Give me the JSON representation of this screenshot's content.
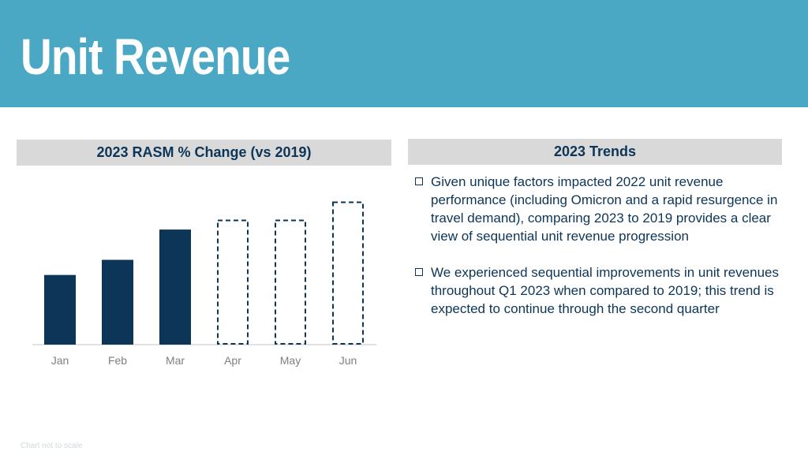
{
  "header": {
    "title": "Unit Revenue"
  },
  "chart_panel": {
    "title": "2023 RASM % Change (vs 2019)"
  },
  "trends_panel": {
    "title": "2023 Trends",
    "bullets": [
      "Given unique factors impacted 2022 unit revenue performance (including Omicron and a rapid resurgence in travel demand), comparing 2023 to 2019 provides a clear view of sequential unit revenue progression",
      "We experienced sequential improvements in unit revenues throughout Q1 2023 when compared to 2019; this trend is expected to continue through the second quarter"
    ]
  },
  "footnote": "Chart not to scale",
  "colors": {
    "header": "#4aa8c4",
    "navy": "#0c3557",
    "panel_head": "#d9d9d9",
    "axis_text": "#7f7f7f"
  },
  "chart_data": {
    "type": "bar",
    "title": "2023 RASM % Change (vs 2019)",
    "categories": [
      "Jan",
      "Feb",
      "Mar",
      "Apr",
      "May",
      "Jun"
    ],
    "values": [
      2.3,
      2.8,
      3.8,
      4.1,
      4.1,
      4.7
    ],
    "bar_style": [
      "solid",
      "solid",
      "solid",
      "dashed",
      "dashed",
      "dashed"
    ],
    "note": "Chart not to scale",
    "ylim": [
      0,
      5
    ]
  }
}
